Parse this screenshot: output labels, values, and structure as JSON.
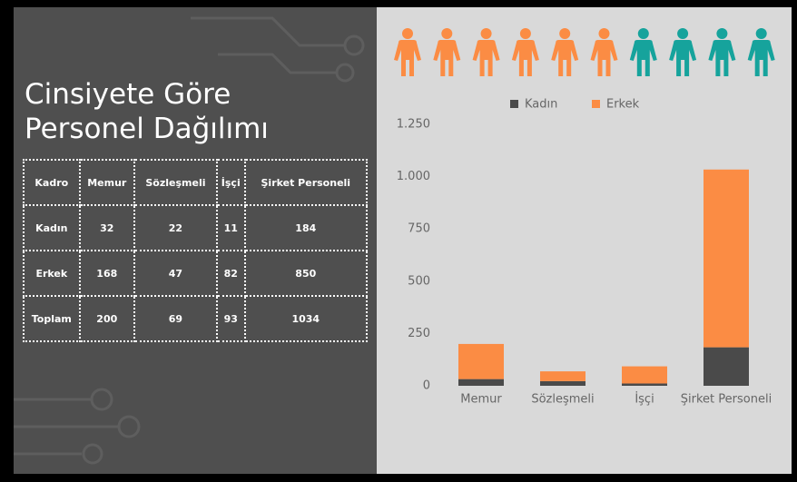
{
  "title_lines": [
    "Cinsiyete Göre",
    "Personel Dağılımı"
  ],
  "table": {
    "header": [
      "Kadro",
      "Memur",
      "Sözleşmeli",
      "İşçi",
      "Şirket Personeli"
    ],
    "rows": [
      [
        "Kadın",
        32,
        22,
        11,
        184
      ],
      [
        "Erkek",
        168,
        47,
        82,
        850
      ],
      [
        "Toplam",
        200,
        69,
        93,
        1034
      ]
    ]
  },
  "chart_data": {
    "type": "stacked_bar",
    "categories": [
      "Memur",
      "Sözleşmeli",
      "İşçi",
      "Şirket Personeli"
    ],
    "series": [
      {
        "name": "Kadın",
        "color": "#4a4a4a",
        "values": [
          32,
          22,
          11,
          184
        ]
      },
      {
        "name": "Erkek",
        "color": "#fb8c44",
        "values": [
          168,
          47,
          82,
          850
        ]
      }
    ],
    "ylim": [
      0,
      1250
    ],
    "yticks": [
      0,
      250,
      500,
      750,
      {
        "value": 1000,
        "label": "1.000"
      },
      {
        "value": 1250,
        "label": "1.250"
      }
    ],
    "grid": false,
    "legend": "top"
  }
}
